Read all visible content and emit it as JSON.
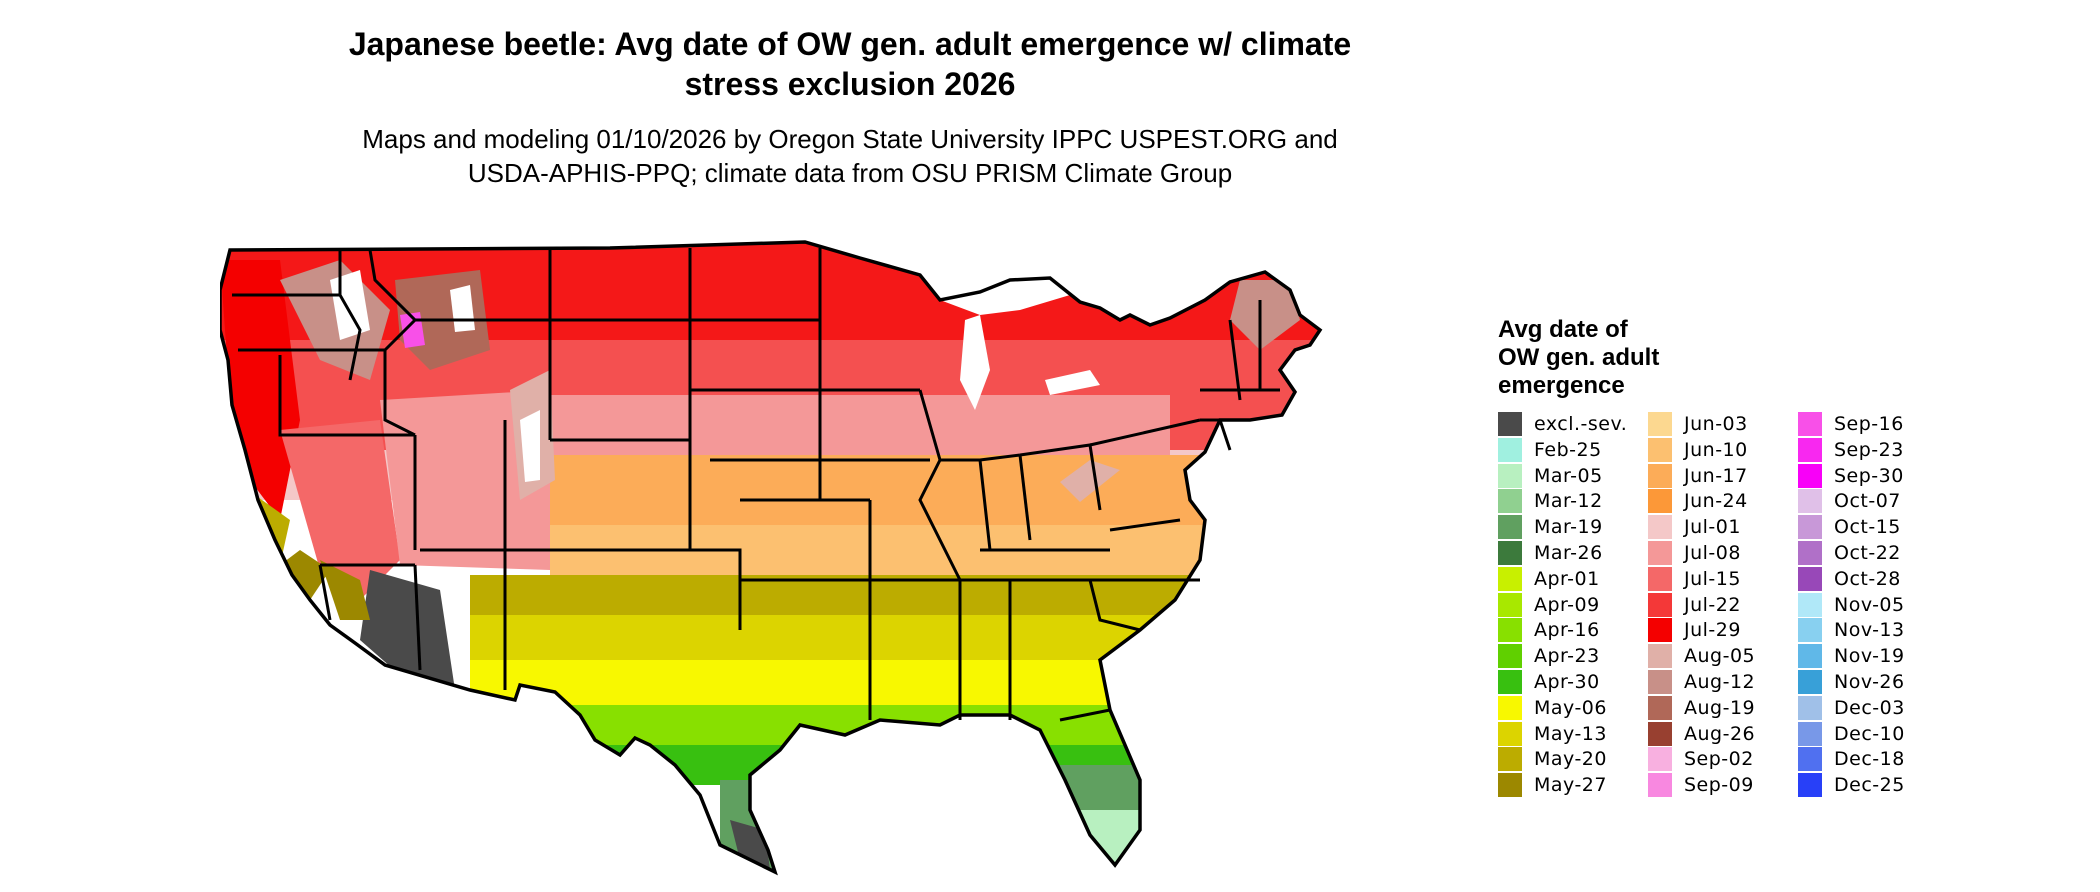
{
  "map": {
    "title_line1": "Japanese beetle: Avg date of OW gen. adult emergence w/ climate",
    "title_line2": "stress exclusion 2026",
    "subtitle_line1": "Maps and modeling 01/10/2026 by Oregon State University IPPC USPEST.ORG and",
    "subtitle_line2": "USDA-APHIS-PPQ; climate data from OSU PRISM Climate Group",
    "region": "Contiguous United States"
  },
  "legend": {
    "title_line1": "Avg date of",
    "title_line2": "OW gen. adult",
    "title_line3": "emergence",
    "columns": [
      [
        {
          "label": "excl.-sev.",
          "color": "#4a4a4a"
        },
        {
          "label": "Feb-25",
          "color": "#a0f0e0"
        },
        {
          "label": "Mar-05",
          "color": "#b8f0c0"
        },
        {
          "label": "Mar-12",
          "color": "#90d090"
        },
        {
          "label": "Mar-19",
          "color": "#60a060"
        },
        {
          "label": "Mar-26",
          "color": "#3c7a3c"
        },
        {
          "label": "Apr-01",
          "color": "#c8f000"
        },
        {
          "label": "Apr-09",
          "color": "#a8e800"
        },
        {
          "label": "Apr-16",
          "color": "#88e000"
        },
        {
          "label": "Apr-23",
          "color": "#60d000"
        },
        {
          "label": "Apr-30",
          "color": "#38c010"
        },
        {
          "label": "May-06",
          "color": "#f8f800"
        },
        {
          "label": "May-13",
          "color": "#dcd400"
        },
        {
          "label": "May-20",
          "color": "#bcac00"
        },
        {
          "label": "May-27",
          "color": "#9c8800"
        }
      ],
      [
        {
          "label": "Jun-03",
          "color": "#fcd890"
        },
        {
          "label": "Jun-10",
          "color": "#fcc070"
        },
        {
          "label": "Jun-17",
          "color": "#fcac58"
        },
        {
          "label": "Jun-24",
          "color": "#fc9838"
        },
        {
          "label": "Jul-01",
          "color": "#f4c8c8"
        },
        {
          "label": "Jul-08",
          "color": "#f49898"
        },
        {
          "label": "Jul-15",
          "color": "#f46868"
        },
        {
          "label": "Jul-22",
          "color": "#f43838"
        },
        {
          "label": "Jul-29",
          "color": "#f40000"
        },
        {
          "label": "Aug-05",
          "color": "#e0b0a8"
        },
        {
          "label": "Aug-12",
          "color": "#c89088"
        },
        {
          "label": "Aug-19",
          "color": "#b06858"
        },
        {
          "label": "Aug-26",
          "color": "#984030"
        },
        {
          "label": "Sep-02",
          "color": "#f8b0e0"
        },
        {
          "label": "Sep-09",
          "color": "#f888e0"
        }
      ],
      [
        {
          "label": "Sep-16",
          "color": "#f850e8"
        },
        {
          "label": "Sep-23",
          "color": "#f828f0"
        },
        {
          "label": "Sep-30",
          "color": "#f800f8"
        },
        {
          "label": "Oct-07",
          "color": "#e0c0e8"
        },
        {
          "label": "Oct-15",
          "color": "#c898d8"
        },
        {
          "label": "Oct-22",
          "color": "#b070c8"
        },
        {
          "label": "Oct-28",
          "color": "#9848b8"
        },
        {
          "label": "Nov-05",
          "color": "#b0e8f8"
        },
        {
          "label": "Nov-13",
          "color": "#88d0f0"
        },
        {
          "label": "Nov-19",
          "color": "#60b8e8"
        },
        {
          "label": "Nov-26",
          "color": "#38a0d8"
        },
        {
          "label": "Dec-03",
          "color": "#a0c0e8"
        },
        {
          "label": "Dec-10",
          "color": "#7898e8"
        },
        {
          "label": "Dec-18",
          "color": "#5070f0"
        },
        {
          "label": "Dec-25",
          "color": "#2840f8"
        }
      ]
    ]
  }
}
